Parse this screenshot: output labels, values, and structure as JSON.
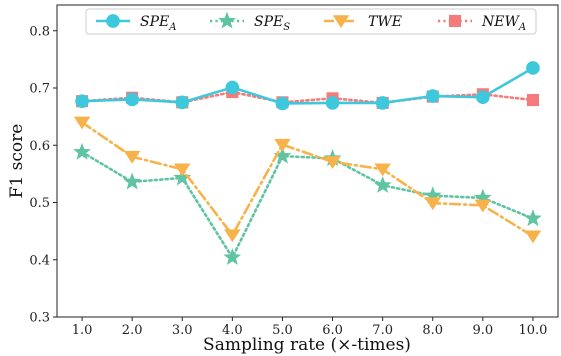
{
  "chart_data": {
    "type": "line",
    "title": "",
    "xlabel": "Sampling rate (×-times)",
    "ylabel": "F1 score",
    "x": [
      1.0,
      2.0,
      3.0,
      4.0,
      5.0,
      6.0,
      7.0,
      8.0,
      9.0,
      10.0
    ],
    "x_tick_labels": [
      "1.0",
      "2.0",
      "3.0",
      "4.0",
      "5.0",
      "6.0",
      "7.0",
      "8.0",
      "9.0",
      "10.0"
    ],
    "xlim": [
      0.5,
      10.5
    ],
    "ylim": [
      0.3,
      0.845
    ],
    "y_ticks": [
      0.3,
      0.4,
      0.5,
      0.6,
      0.7,
      0.8
    ],
    "y_tick_labels": [
      "0.3",
      "0.4",
      "0.5",
      "0.6",
      "0.7",
      "0.8"
    ],
    "grid": false,
    "legend_position": "top",
    "series": [
      {
        "name": "SPE",
        "subscript": "A",
        "color": "#3ec8dc",
        "line_style": "solid",
        "marker": "circle",
        "values": [
          0.677,
          0.68,
          0.675,
          0.701,
          0.673,
          0.674,
          0.674,
          0.686,
          0.684,
          0.735
        ]
      },
      {
        "name": "SPE",
        "subscript": "S",
        "color": "#5fc4a4",
        "line_style": "dotted",
        "marker": "star",
        "values": [
          0.588,
          0.536,
          0.543,
          0.404,
          0.581,
          0.577,
          0.53,
          0.512,
          0.508,
          0.472
        ]
      },
      {
        "name": "TWE",
        "subscript": "",
        "color": "#f7b24a",
        "line_style": "dashdot",
        "marker": "triangle-down",
        "values": [
          0.64,
          0.58,
          0.558,
          0.443,
          0.601,
          0.571,
          0.558,
          0.499,
          0.495,
          0.441
        ]
      },
      {
        "name": "NEW",
        "subscript": "A",
        "color": "#f47b7b",
        "line_style": "dotted",
        "marker": "square",
        "values": [
          0.677,
          0.683,
          0.675,
          0.693,
          0.675,
          0.682,
          0.674,
          0.685,
          0.689,
          0.679
        ]
      }
    ]
  }
}
